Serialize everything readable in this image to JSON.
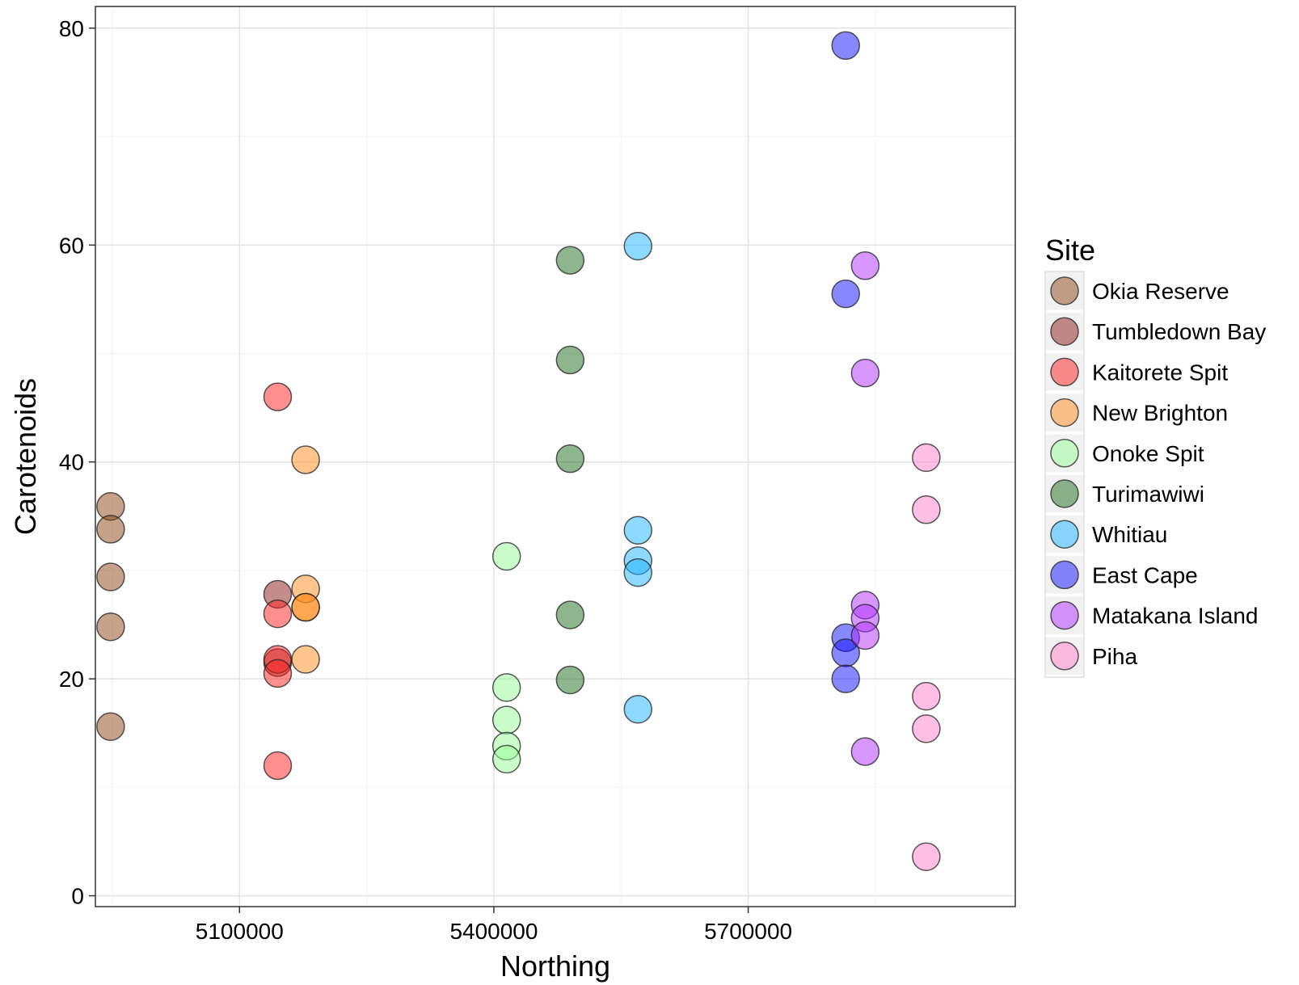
{
  "chart_data": {
    "type": "scatter",
    "title": "",
    "xlabel": "Northing",
    "ylabel": "Carotenoids",
    "xlim": [
      4930000,
      6015000
    ],
    "ylim": [
      -1,
      82
    ],
    "x_ticks": [
      5100000,
      5400000,
      5700000
    ],
    "x_tick_labels": [
      "5100000",
      "5400000",
      "5700000"
    ],
    "y_ticks": [
      0,
      20,
      40,
      60,
      80
    ],
    "y_tick_labels": [
      "0",
      "20",
      "40",
      "60",
      "80"
    ],
    "x_minor": [
      4950000,
      5250000,
      5550000,
      5850000
    ],
    "y_minor": [
      10,
      30,
      50,
      70
    ],
    "grid": true,
    "legend": {
      "title": "Site",
      "position": "right"
    },
    "series": [
      {
        "name": "Okia Reserve",
        "color": "#8B4513",
        "x": [
          4948000,
          4948000,
          4948000,
          4948000,
          4948000
        ],
        "y": [
          35.9,
          33.8,
          29.4,
          24.8,
          15.6
        ]
      },
      {
        "name": "Tumbledown Bay",
        "color": "#8B1A1A",
        "x": [
          5145000,
          5145000
        ],
        "y": [
          27.8,
          21.5
        ]
      },
      {
        "name": "Kaitorete Spit",
        "color": "#FF2020",
        "x": [
          5145000,
          5145000,
          5145000,
          5145000,
          5145000
        ],
        "y": [
          46.0,
          26.0,
          21.8,
          20.5,
          12.0
        ]
      },
      {
        "name": "New Brighton",
        "color": "#FF8C1A",
        "x": [
          5178000,
          5178000,
          5178000,
          5178000,
          5178000
        ],
        "y": [
          40.2,
          28.3,
          26.6,
          26.6,
          21.8
        ]
      },
      {
        "name": "Onoke Spit",
        "color": "#98FB98",
        "x": [
          5415000,
          5415000,
          5415000,
          5415000,
          5415000
        ],
        "y": [
          31.3,
          19.2,
          16.2,
          13.8,
          12.6
        ]
      },
      {
        "name": "Turimawiwi",
        "color": "#1E6B1E",
        "x": [
          5490000,
          5490000,
          5490000,
          5490000,
          5490000
        ],
        "y": [
          58.6,
          49.4,
          40.3,
          25.9,
          19.9
        ]
      },
      {
        "name": "Whitiau",
        "color": "#1EB4FF",
        "x": [
          5570000,
          5570000,
          5570000,
          5570000,
          5570000
        ],
        "y": [
          59.9,
          33.7,
          30.9,
          29.8,
          17.2
        ]
      },
      {
        "name": "East Cape",
        "color": "#1010FF",
        "x": [
          5815000,
          5815000,
          5815000,
          5815000,
          5815000
        ],
        "y": [
          78.4,
          55.5,
          23.8,
          22.4,
          20.0
        ]
      },
      {
        "name": "Matakana Island",
        "color": "#B030FF",
        "x": [
          5838000,
          5838000,
          5838000,
          5838000,
          5838000,
          5838000
        ],
        "y": [
          58.1,
          48.2,
          26.8,
          25.6,
          24.0,
          13.3
        ]
      },
      {
        "name": "Piha",
        "color": "#FF7EC8",
        "x": [
          5910000,
          5910000,
          5910000,
          5910000,
          5910000
        ],
        "y": [
          40.4,
          35.6,
          18.4,
          15.4,
          3.6
        ]
      }
    ]
  }
}
